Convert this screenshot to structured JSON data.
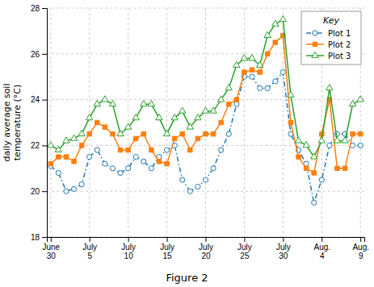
{
  "chart_data": {
    "type": "line",
    "title": "Figure 2",
    "y_label": "daily average soil\ntemperature (°C)",
    "categories": [
      "June\n30",
      null,
      null,
      null,
      null,
      "July\n5",
      null,
      null,
      null,
      null,
      "July\n10",
      null,
      null,
      null,
      null,
      "July\n15",
      null,
      null,
      null,
      null,
      "July\n20",
      null,
      null,
      null,
      null,
      "July\n25",
      null,
      null,
      null,
      null,
      "July\n30",
      null,
      null,
      null,
      null,
      "Aug.\n4",
      null,
      null,
      null,
      null,
      "Aug.\n9"
    ],
    "ylim": [
      18,
      28
    ],
    "yticks": [
      18,
      20,
      22,
      24,
      26,
      28
    ],
    "grid": true,
    "legend": "upper right",
    "legend_title": "Key",
    "series": [
      {
        "name": "Plot 1",
        "marker": "circle-open",
        "line_style": "dashdot",
        "values": [
          21.1,
          20.8,
          20.0,
          20.1,
          20.3,
          21.5,
          21.8,
          21.2,
          21.0,
          20.8,
          21.0,
          21.5,
          21.3,
          21.0,
          21.5,
          21.8,
          22.0,
          20.5,
          20.0,
          20.2,
          20.5,
          21.0,
          21.8,
          22.5,
          23.8,
          25.0,
          25.0,
          24.5,
          24.5,
          24.8,
          25.2,
          22.5,
          21.8,
          21.2,
          19.5,
          20.5,
          22.0,
          22.5,
          22.5,
          22.0,
          22.0
        ]
      },
      {
        "name": "Plot 2",
        "marker": "square",
        "line_style": "solid",
        "values": [
          21.2,
          21.5,
          21.5,
          21.3,
          22.0,
          22.5,
          23.0,
          22.8,
          22.5,
          21.8,
          21.8,
          22.3,
          22.5,
          21.8,
          21.3,
          21.2,
          22.3,
          22.5,
          21.8,
          22.3,
          22.5,
          22.5,
          23.0,
          23.8,
          24.0,
          25.2,
          25.3,
          25.2,
          26.0,
          26.5,
          26.8,
          23.0,
          21.5,
          21.0,
          20.8,
          22.5,
          24.0,
          21.0,
          21.0,
          22.5,
          22.5
        ]
      },
      {
        "name": "Plot 3",
        "marker": "triangle-open",
        "line_style": "solid",
        "values": [
          22.0,
          21.8,
          22.2,
          22.3,
          22.5,
          23.2,
          23.8,
          24.0,
          23.8,
          22.5,
          22.8,
          23.2,
          23.8,
          23.8,
          23.2,
          22.5,
          23.2,
          23.5,
          22.8,
          23.2,
          23.5,
          23.5,
          24.0,
          24.5,
          25.5,
          25.8,
          25.8,
          25.5,
          26.8,
          27.3,
          27.5,
          24.2,
          22.2,
          22.0,
          21.5,
          22.2,
          24.5,
          22.2,
          22.2,
          23.8,
          24.0
        ]
      }
    ]
  }
}
